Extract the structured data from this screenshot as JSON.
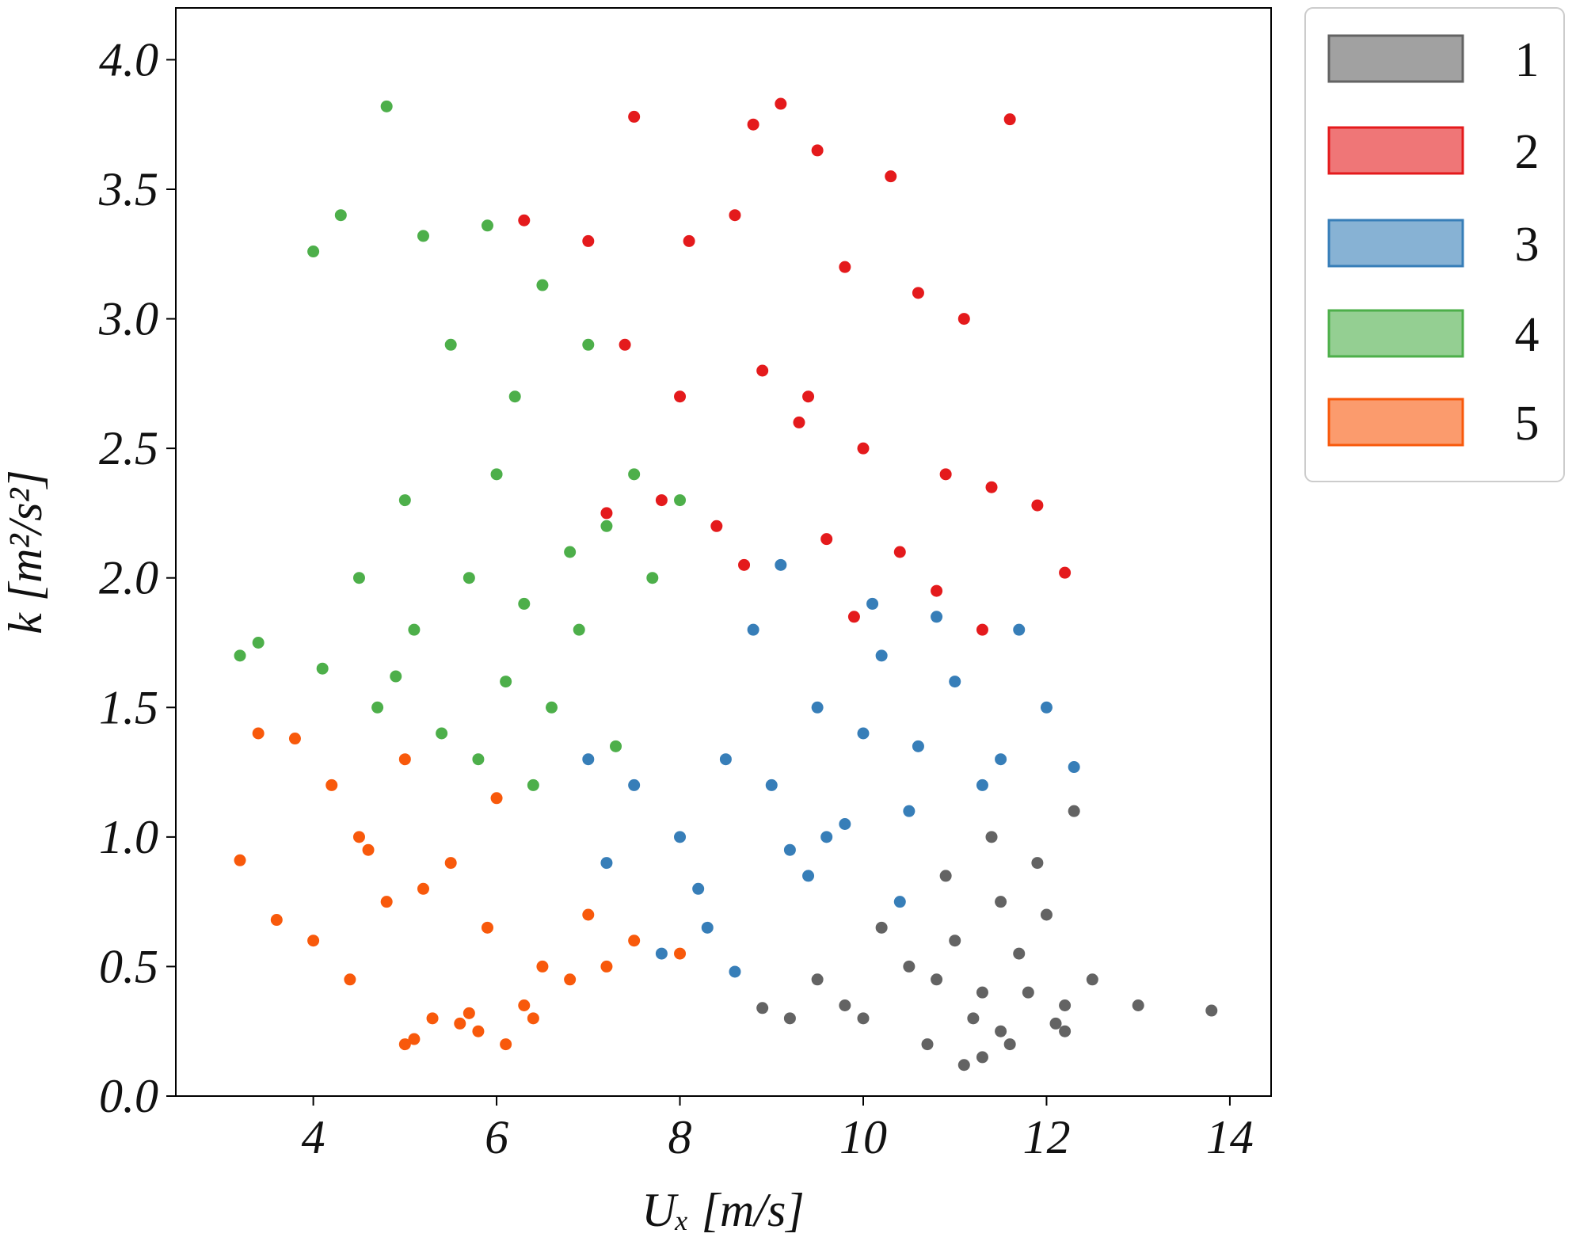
{
  "chart_data": {
    "type": "scatter",
    "xlabel": "Uₓ [m/s]",
    "ylabel": "k [m²/s²]",
    "xlim": [
      2.5,
      14.45
    ],
    "ylim": [
      0,
      4.2
    ],
    "xticks": [
      4,
      6,
      8,
      10,
      12,
      14
    ],
    "yticks": [
      {
        "value": 0,
        "label": "0.0"
      },
      0.5,
      {
        "value": 1,
        "label": "1.0"
      },
      1.5,
      {
        "value": 2,
        "label": "2.0"
      },
      2.5,
      {
        "value": 3,
        "label": "3.0"
      },
      3.5,
      {
        "value": 4,
        "label": "4.0"
      }
    ],
    "legend": "upper right outside",
    "series": [
      {
        "name": "1",
        "color": "#636363",
        "x": [
          11.2,
          11.5,
          10.8,
          11.0,
          11.8,
          12.2,
          10.5,
          9.8,
          9.2,
          8.9,
          11.3,
          11.6,
          12.0,
          12.5,
          13.0,
          13.8,
          10.2,
          10.9,
          11.4,
          11.9,
          12.3,
          11.1,
          10.7,
          11.7,
          12.1,
          9.5,
          10.0,
          11.5,
          11.3,
          12.2
        ],
        "y": [
          0.3,
          0.25,
          0.45,
          0.6,
          0.4,
          0.35,
          0.5,
          0.35,
          0.3,
          0.34,
          0.15,
          0.2,
          0.7,
          0.45,
          0.35,
          0.33,
          0.65,
          0.85,
          1.0,
          0.9,
          1.1,
          0.12,
          0.2,
          0.55,
          0.28,
          0.45,
          0.3,
          0.75,
          0.4,
          0.25
        ]
      },
      {
        "name": "2",
        "color": "#e41a1c",
        "x": [
          9.1,
          7.5,
          8.8,
          9.5,
          10.3,
          11.6,
          7.0,
          8.1,
          8.6,
          9.8,
          10.6,
          11.1,
          7.4,
          8.0,
          8.9,
          9.3,
          10.0,
          10.9,
          11.4,
          7.8,
          8.4,
          9.6,
          10.4,
          11.9,
          12.2,
          6.3,
          7.2,
          8.7,
          9.9,
          10.8,
          11.3,
          9.4
        ],
        "y": [
          3.83,
          3.78,
          3.75,
          3.65,
          3.55,
          3.77,
          3.3,
          3.3,
          3.4,
          3.2,
          3.1,
          3.0,
          2.9,
          2.7,
          2.8,
          2.6,
          2.5,
          2.4,
          2.35,
          2.3,
          2.2,
          2.15,
          2.1,
          2.28,
          2.02,
          3.38,
          2.25,
          2.05,
          1.85,
          1.95,
          1.8,
          2.7
        ]
      },
      {
        "name": "3",
        "color": "#377eb8",
        "x": [
          8.5,
          9.0,
          9.5,
          10.0,
          10.5,
          11.0,
          11.5,
          12.0,
          8.0,
          8.2,
          7.5,
          7.2,
          9.2,
          9.8,
          10.2,
          10.8,
          11.3,
          12.3,
          8.8,
          9.4,
          10.6,
          8.3,
          7.8,
          9.1,
          10.1,
          11.7,
          8.6,
          9.6,
          7.0,
          10.4
        ],
        "y": [
          1.3,
          1.2,
          1.5,
          1.4,
          1.1,
          1.6,
          1.3,
          1.5,
          1.0,
          0.8,
          1.2,
          0.9,
          0.95,
          1.05,
          1.7,
          1.85,
          1.2,
          1.27,
          1.8,
          0.85,
          1.35,
          0.65,
          0.55,
          2.05,
          1.9,
          1.8,
          0.48,
          1.0,
          1.3,
          0.75
        ]
      },
      {
        "name": "4",
        "color": "#4daf4a",
        "x": [
          4.8,
          4.3,
          4.0,
          5.2,
          5.9,
          6.2,
          6.5,
          7.0,
          7.5,
          8.0,
          5.5,
          6.0,
          6.8,
          7.2,
          4.5,
          5.0,
          5.7,
          6.3,
          6.9,
          7.7,
          3.2,
          3.4,
          4.1,
          4.7,
          5.4,
          6.1,
          6.6,
          7.3,
          5.1,
          6.4,
          5.8,
          4.9
        ],
        "y": [
          3.82,
          3.4,
          3.26,
          3.32,
          3.36,
          2.7,
          3.13,
          2.9,
          2.4,
          2.3,
          2.9,
          2.4,
          2.1,
          2.2,
          2.0,
          2.3,
          2.0,
          1.9,
          1.8,
          2.0,
          1.7,
          1.75,
          1.65,
          1.5,
          1.4,
          1.6,
          1.5,
          1.35,
          1.8,
          1.2,
          1.3,
          1.62
        ]
      },
      {
        "name": "5",
        "color": "#f8590b",
        "x": [
          3.2,
          3.4,
          3.8,
          4.2,
          4.5,
          5.0,
          5.5,
          6.0,
          6.5,
          7.0,
          7.5,
          8.0,
          4.0,
          4.8,
          5.3,
          5.8,
          6.3,
          6.8,
          4.4,
          5.1,
          5.6,
          6.1,
          3.6,
          4.6,
          5.2,
          5.9,
          6.4,
          7.2,
          5.0,
          5.7
        ],
        "y": [
          0.91,
          1.4,
          1.38,
          1.2,
          1.0,
          1.3,
          0.9,
          1.15,
          0.5,
          0.7,
          0.6,
          0.55,
          0.6,
          0.75,
          0.3,
          0.25,
          0.35,
          0.45,
          0.45,
          0.22,
          0.28,
          0.2,
          0.68,
          0.95,
          0.8,
          0.65,
          0.3,
          0.5,
          0.2,
          0.32
        ]
      }
    ]
  }
}
